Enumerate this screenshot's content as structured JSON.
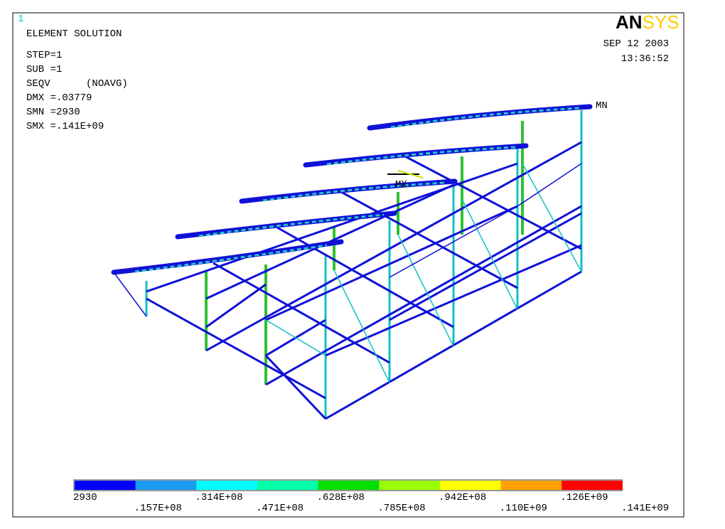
{
  "window_number": "1",
  "info": {
    "title": "ELEMENT SOLUTION",
    "lines": [
      "STEP=1",
      "SUB =1",
      "SEQV      (NOAVG)",
      "DMX =.03779",
      "SMN =2930",
      "SMX =.141E+09"
    ]
  },
  "logo": {
    "part1": "AN",
    "part2": "SYS"
  },
  "date": "SEP 12 2003",
  "time": "13:36:52",
  "markers": {
    "min": "MN",
    "max": "MX"
  },
  "legend": {
    "colors": [
      "#0000ff",
      "#1a9cf0",
      "#00ffff",
      "#00ffaa",
      "#00dd00",
      "#99ff00",
      "#ffff00",
      "#ffa000",
      "#ff0000"
    ],
    "labels": [
      "2930",
      ".157E+08",
      ".314E+08",
      ".471E+08",
      ".628E+08",
      ".785E+08",
      ".942E+08",
      ".110E+09",
      ".126E+09",
      ".141E+09"
    ]
  }
}
